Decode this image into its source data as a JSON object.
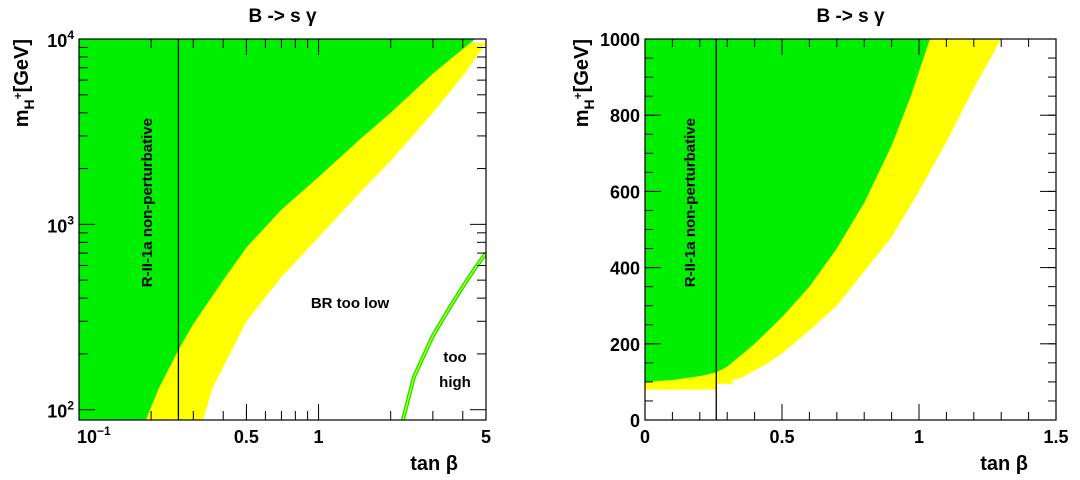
{
  "colors": {
    "allowed_2sigma": "#00ee00",
    "allowed_3sigma": "#ffff00",
    "line": "#000000",
    "frame": "#000000"
  },
  "chart_data": [
    {
      "type": "area",
      "title": "B -> s γ",
      "xlabel": "tan β",
      "ylabel": "m_H+[GeV]",
      "ylabel_main": "m",
      "ylabel_sub": "H",
      "ylabel_sup": "+",
      "ylabel_unit": "[GeV]",
      "x_scale": "log",
      "y_scale": "log",
      "xlim": [
        0.1,
        5
      ],
      "ylim": [
        88,
        10000
      ],
      "x_ticks": [
        {
          "value": 0.1,
          "base": "10",
          "exp": "−1"
        },
        {
          "value": 0.5,
          "label": "0.5"
        },
        {
          "value": 1,
          "label": "1"
        },
        {
          "value": 5,
          "label": "5"
        }
      ],
      "y_ticks": [
        {
          "value": 100,
          "base": "10",
          "exp": "2"
        },
        {
          "value": 1000,
          "base": "10",
          "exp": "3"
        },
        {
          "value": 10000,
          "base": "10",
          "exp": "4"
        }
      ],
      "vertical_line_x": 0.26,
      "green_boundary": [
        [
          0.19,
          88
        ],
        [
          0.215,
          130
        ],
        [
          0.26,
          210
        ],
        [
          0.3,
          290
        ],
        [
          0.4,
          500
        ],
        [
          0.5,
          750
        ],
        [
          0.7,
          1200
        ],
        [
          1,
          1800
        ],
        [
          1.5,
          2900
        ],
        [
          2,
          4000
        ],
        [
          3,
          6500
        ],
        [
          4.5,
          10000
        ]
      ],
      "yellow_boundary": [
        [
          0.33,
          88
        ],
        [
          0.36,
          130
        ],
        [
          0.4,
          170
        ],
        [
          0.5,
          300
        ],
        [
          0.7,
          520
        ],
        [
          1,
          850
        ],
        [
          1.5,
          1500
        ],
        [
          2,
          2200
        ],
        [
          3,
          4000
        ],
        [
          4,
          6300
        ],
        [
          5,
          9500
        ]
      ],
      "too_high_boundary": [
        [
          2.25,
          88
        ],
        [
          2.5,
          150
        ],
        [
          3,
          250
        ],
        [
          3.5,
          350
        ],
        [
          4,
          460
        ],
        [
          4.5,
          580
        ],
        [
          5,
          700
        ]
      ],
      "annotations": {
        "non_perturbative": "R-II-1a non-perturbative",
        "br_too_low": "BR too low",
        "too_high_1": "too",
        "too_high_2": "high"
      }
    },
    {
      "type": "area",
      "title": "B -> s γ",
      "xlabel": "tan β",
      "ylabel": "m_H+[GeV]",
      "ylabel_main": "m",
      "ylabel_sub": "H",
      "ylabel_sup": "+",
      "ylabel_unit": "[GeV]",
      "x_scale": "linear",
      "y_scale": "linear",
      "xlim": [
        0,
        1.5
      ],
      "ylim": [
        0,
        1000
      ],
      "x_ticks": [
        {
          "value": 0,
          "label": "0"
        },
        {
          "value": 0.5,
          "label": "0.5"
        },
        {
          "value": 1,
          "label": "1"
        },
        {
          "value": 1.5,
          "label": "1.5"
        }
      ],
      "y_ticks": [
        {
          "value": 0,
          "label": "0"
        },
        {
          "value": 200,
          "label": "200"
        },
        {
          "value": 400,
          "label": "400"
        },
        {
          "value": 600,
          "label": "600"
        },
        {
          "value": 800,
          "label": "800"
        },
        {
          "value": 1000,
          "label": "1000"
        }
      ],
      "vertical_line_x": 0.26,
      "floor_band": [
        [
          0,
          0.26,
          80,
          100
        ],
        [
          0.26,
          0.32,
          95,
          120
        ]
      ],
      "green_boundary": [
        [
          0,
          100
        ],
        [
          0.1,
          105
        ],
        [
          0.2,
          115
        ],
        [
          0.26,
          125
        ],
        [
          0.3,
          140
        ],
        [
          0.35,
          170
        ],
        [
          0.4,
          200
        ],
        [
          0.5,
          270
        ],
        [
          0.6,
          350
        ],
        [
          0.7,
          450
        ],
        [
          0.8,
          570
        ],
        [
          0.9,
          720
        ],
        [
          0.97,
          850
        ],
        [
          1.04,
          1000
        ]
      ],
      "yellow_boundary": [
        [
          0.26,
          100
        ],
        [
          0.35,
          110
        ],
        [
          0.45,
          150
        ],
        [
          0.5,
          175
        ],
        [
          0.6,
          235
        ],
        [
          0.7,
          300
        ],
        [
          0.8,
          390
        ],
        [
          0.9,
          480
        ],
        [
          1.0,
          600
        ],
        [
          1.1,
          730
        ],
        [
          1.2,
          870
        ],
        [
          1.3,
          1000
        ]
      ],
      "annotations": {
        "non_perturbative": "R-II-1a non-perturbative"
      }
    }
  ]
}
